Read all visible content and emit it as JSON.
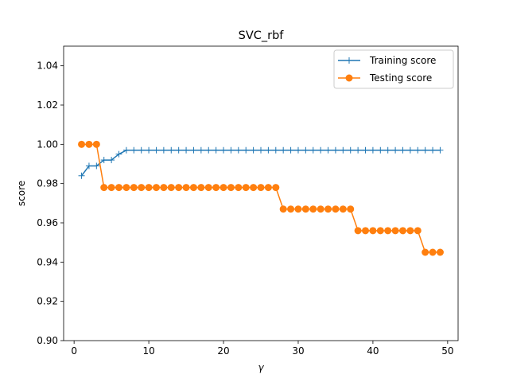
{
  "chart_data": {
    "type": "line",
    "title": "SVC_rbf",
    "xlabel": "γ",
    "ylabel": "score",
    "xlim": [
      -1.4,
      51.4
    ],
    "ylim": [
      0.9,
      1.05
    ],
    "xticks": [
      0,
      10,
      20,
      30,
      40,
      50
    ],
    "yticks": [
      "0.90",
      "0.92",
      "0.94",
      "0.96",
      "0.98",
      "1.00",
      "1.02",
      "1.04"
    ],
    "grid": false,
    "legend_position": "top-right",
    "x": [
      1,
      2,
      3,
      4,
      5,
      6,
      7,
      8,
      9,
      10,
      11,
      12,
      13,
      14,
      15,
      16,
      17,
      18,
      19,
      20,
      21,
      22,
      23,
      24,
      25,
      26,
      27,
      28,
      29,
      30,
      31,
      32,
      33,
      34,
      35,
      36,
      37,
      38,
      39,
      40,
      41,
      42,
      43,
      44,
      45,
      46,
      47,
      48,
      49
    ],
    "series": [
      {
        "name": "Training score",
        "color": "#1f77b4",
        "marker": "plus",
        "values": [
          0.984,
          0.989,
          0.989,
          0.992,
          0.992,
          0.995,
          0.997,
          0.997,
          0.997,
          0.997,
          0.997,
          0.997,
          0.997,
          0.997,
          0.997,
          0.997,
          0.997,
          0.997,
          0.997,
          0.997,
          0.997,
          0.997,
          0.997,
          0.997,
          0.997,
          0.997,
          0.997,
          0.997,
          0.997,
          0.997,
          0.997,
          0.997,
          0.997,
          0.997,
          0.997,
          0.997,
          0.997,
          0.997,
          0.997,
          0.997,
          0.997,
          0.997,
          0.997,
          0.997,
          0.997,
          0.997,
          0.997,
          0.997,
          0.997
        ]
      },
      {
        "name": "Testing score",
        "color": "#ff7f0e",
        "marker": "circle",
        "values": [
          1.0,
          1.0,
          1.0,
          0.978,
          0.978,
          0.978,
          0.978,
          0.978,
          0.978,
          0.978,
          0.978,
          0.978,
          0.978,
          0.978,
          0.978,
          0.978,
          0.978,
          0.978,
          0.978,
          0.978,
          0.978,
          0.978,
          0.978,
          0.978,
          0.978,
          0.978,
          0.978,
          0.967,
          0.967,
          0.967,
          0.967,
          0.967,
          0.967,
          0.967,
          0.967,
          0.967,
          0.967,
          0.956,
          0.956,
          0.956,
          0.956,
          0.956,
          0.956,
          0.956,
          0.956,
          0.956,
          0.945,
          0.945,
          0.945
        ]
      }
    ]
  }
}
